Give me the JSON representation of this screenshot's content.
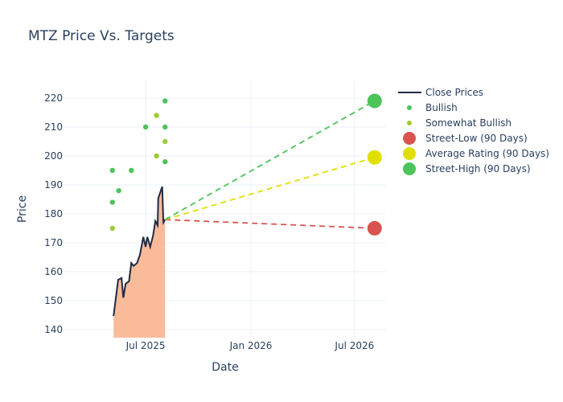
{
  "chart_data": {
    "type": "line",
    "title": "MTZ Price Vs. Targets",
    "xlabel": "Date",
    "ylabel": "Price",
    "xlim": [
      "2025-02-09",
      "2026-08-25"
    ],
    "ylim": [
      137.2,
      226.1
    ],
    "grid": true,
    "legend_position": "top-right",
    "x_ticks": [
      {
        "date": "2025-07-01",
        "label": "Jul 2025"
      },
      {
        "date": "2026-01-01",
        "label": "Jan 2026"
      },
      {
        "date": "2026-07-01",
        "label": "Jul 2026"
      }
    ],
    "y_ticks": [
      140,
      150,
      160,
      170,
      180,
      190,
      200,
      210,
      220
    ],
    "close_prices": {
      "name": "Close Prices",
      "color": "#1f2a44",
      "fill": "#f9b48f",
      "x": [
        "2025-05-06",
        "2025-05-14",
        "2025-05-20",
        "2025-05-23",
        "2025-05-27",
        "2025-06-02",
        "2025-06-06",
        "2025-06-10",
        "2025-06-16",
        "2025-06-21",
        "2025-06-27",
        "2025-07-01",
        "2025-07-04",
        "2025-07-09",
        "2025-07-14",
        "2025-07-18",
        "2025-07-22",
        "2025-07-23",
        "2025-07-30",
        "2025-08-01",
        "2025-08-04"
      ],
      "y": [
        144.7,
        157.2,
        157.8,
        151,
        155.8,
        156.7,
        163,
        162,
        163,
        165.8,
        172,
        168.6,
        172,
        168.6,
        172.5,
        177.5,
        176,
        185.3,
        189.4,
        177,
        178
      ]
    },
    "bullish": {
      "name": "Bullish",
      "color": "#4cc45a",
      "x": [
        "2025-05-04",
        "2025-05-04",
        "2025-05-15",
        "2025-06-06",
        "2025-07-01",
        "2025-08-04",
        "2025-08-04",
        "2025-08-04"
      ],
      "y": [
        195,
        184,
        188,
        195,
        210,
        219,
        210,
        198
      ]
    },
    "somewhat_bullish": {
      "name": "Somewhat Bullish",
      "color": "#9acd32",
      "x": [
        "2025-05-04",
        "2025-07-20",
        "2025-07-20",
        "2025-08-04"
      ],
      "y": [
        175,
        214,
        200,
        205
      ]
    },
    "targets": {
      "start_date": "2025-08-04",
      "start_price": 178,
      "end_date": "2026-08-05",
      "series": [
        {
          "name": "Street-Low (90 Days)",
          "value": 175,
          "color": "#d9534f"
        },
        {
          "name": "Average Rating (90 Days)",
          "value": 199.5,
          "color": "#e0e000"
        },
        {
          "name": "Street-High (90 Days)",
          "value": 219,
          "color": "#4cc45a"
        }
      ]
    }
  }
}
